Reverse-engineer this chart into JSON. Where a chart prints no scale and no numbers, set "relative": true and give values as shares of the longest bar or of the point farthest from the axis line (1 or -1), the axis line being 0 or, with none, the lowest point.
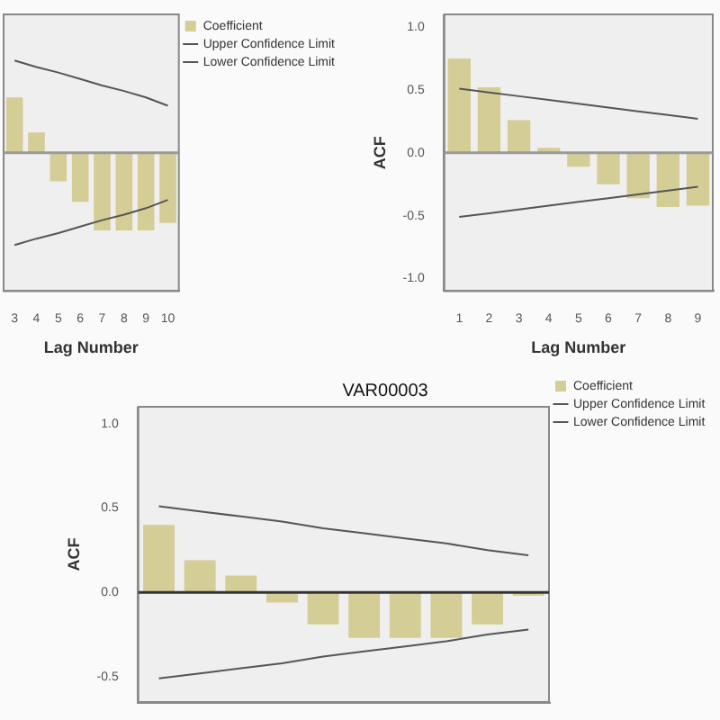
{
  "chart_data": [
    {
      "type": "bar",
      "relative": true,
      "xlabel": "Lag Number",
      "categories": [
        "3",
        "4",
        "5",
        "6",
        "7",
        "8",
        "9",
        "10"
      ],
      "legend": "right",
      "marker": "none",
      "grid": false,
      "tick_labels": "x",
      "ref_lines": [
        {
          "axis": "y",
          "value": 0,
          "color": "#999999"
        }
      ],
      "series": [
        {
          "name": "Coefficient",
          "color": "#d4cd95",
          "values": [
            0.6,
            0.22,
            -0.31,
            -0.53,
            -0.84,
            -0.84,
            -0.84,
            -0.76
          ]
        },
        {
          "name": "Upper Confidence Limit",
          "type": "line",
          "color": "#555555",
          "values": [
            1,
            0.93,
            0.87,
            0.8,
            0.73,
            0.67,
            0.6,
            0.51
          ]
        },
        {
          "name": "Lower Confidence Limit",
          "type": "line",
          "color": "#555555",
          "values": [
            -1,
            -0.93,
            -0.87,
            -0.8,
            -0.73,
            -0.67,
            -0.6,
            -0.51
          ]
        }
      ]
    },
    {
      "type": "bar",
      "xlabel": "Lag Number",
      "ylabel": "ACF",
      "categories": [
        "1",
        "2",
        "3",
        "4",
        "5",
        "6",
        "7",
        "8",
        "9"
      ],
      "marker": "none",
      "grid": false,
      "ylim": [
        -1.1,
        1.1
      ],
      "yticks": [
        {
          "value": -1,
          "label": "-1.0"
        },
        {
          "value": -0.5,
          "label": "-0.5"
        },
        {
          "value": 0,
          "label": "0.0"
        },
        0.5,
        {
          "value": 1,
          "label": "1.0"
        }
      ],
      "ref_lines": [
        {
          "axis": "y",
          "value": 0,
          "color": "#999999"
        }
      ],
      "series": [
        {
          "color": "#d4cd95",
          "values": [
            0.75,
            0.52,
            0.26,
            0.04,
            -0.11,
            -0.25,
            -0.36,
            -0.43,
            -0.42
          ]
        },
        {
          "type": "line",
          "color": "#555555",
          "values": [
            0.51,
            0.48,
            0.45,
            0.42,
            0.39,
            0.36,
            0.33,
            0.3,
            0.27
          ]
        },
        {
          "type": "line",
          "color": "#555555",
          "values": [
            -0.51,
            -0.48,
            -0.45,
            -0.42,
            -0.39,
            -0.36,
            -0.33,
            -0.3,
            -0.27
          ]
        }
      ]
    },
    {
      "type": "bar",
      "title": "VAR00003",
      "ylabel": "ACF",
      "categories": [
        null,
        null,
        null,
        null,
        null,
        null,
        null,
        null,
        null,
        null
      ],
      "legend": "right",
      "marker": "none",
      "grid": false,
      "tick_labels": "y",
      "ylim": [
        -0.65,
        1.1
      ],
      "yticks": [
        {
          "value": -0.5,
          "label": "-0.5"
        },
        {
          "value": 0,
          "label": "0.0"
        },
        0.5,
        {
          "value": 1,
          "label": "1.0"
        }
      ],
      "ref_lines": [
        {
          "axis": "y",
          "value": 0,
          "color": "#333333"
        }
      ],
      "series": [
        {
          "name": "Coefficient",
          "color": "#d4cd95",
          "values": [
            0.4,
            0.19,
            0.1,
            -0.06,
            -0.19,
            -0.27,
            -0.27,
            -0.27,
            -0.19,
            -0.02
          ]
        },
        {
          "name": "Upper Confidence Limit",
          "type": "line",
          "color": "#555555",
          "values": [
            0.51,
            0.48,
            0.45,
            0.42,
            0.38,
            0.35,
            0.32,
            0.29,
            0.25,
            0.22
          ]
        },
        {
          "name": "Lower Confidence Limit",
          "type": "line",
          "color": "#555555",
          "values": [
            -0.51,
            -0.48,
            -0.45,
            -0.42,
            -0.38,
            -0.35,
            -0.32,
            -0.29,
            -0.25,
            -0.22
          ]
        }
      ]
    }
  ]
}
